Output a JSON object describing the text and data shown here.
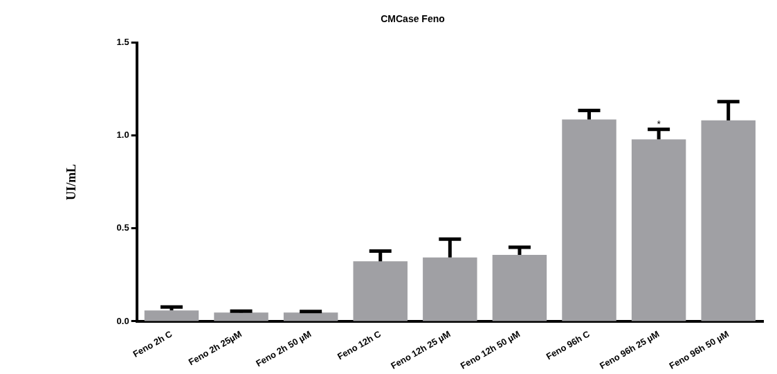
{
  "chart_data": {
    "type": "bar",
    "title": "CMCase Feno",
    "ylabel": "UI/mL",
    "categories": [
      "Feno 2h C",
      "Feno 2h 25µM",
      "Feno 2h 50 µM",
      "Feno 12h C",
      "Feno 12h 25 µM",
      "Feno 12h 50 µM",
      "Feno 96h C",
      "Feno 96h 25 µM",
      "Feno 96h 50 µM"
    ],
    "values": [
      0.059,
      0.047,
      0.047,
      0.323,
      0.344,
      0.358,
      1.087,
      0.98,
      1.082
    ],
    "errors": [
      [
        0.059,
        0.077
      ],
      [
        0.047,
        0.055
      ],
      [
        0.047,
        0.053
      ],
      [
        0.323,
        0.378
      ],
      [
        0.344,
        0.443
      ],
      [
        0.358,
        0.399
      ],
      [
        1.087,
        1.136
      ],
      [
        0.98,
        1.034
      ],
      [
        1.082,
        1.183
      ]
    ],
    "color": "#a0a0a4",
    "ylim": [
      0,
      1.5
    ],
    "yticks": [
      {
        "value": 0,
        "label": "0.0"
      },
      0.5,
      {
        "value": 1,
        "label": "1.0"
      },
      1.5
    ],
    "annotations": [
      {
        "text": "*",
        "x": "Feno 96h 25 µM",
        "y": 1.06
      }
    ],
    "grid": false,
    "legend": false
  }
}
